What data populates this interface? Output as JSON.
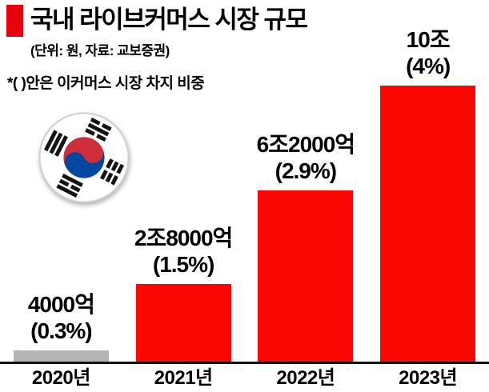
{
  "header": {
    "title": "국내 라이브커머스 시장 규모",
    "subtitle": "(단위: 원, 자료: 교보증권)",
    "note": "*(  )안은 이커머스 시장 차지 비중"
  },
  "chart_data": {
    "type": "bar",
    "title": "국내 라이브커머스 시장 규모",
    "unit_source_note": "(단위: 원, 자료: 교보증권)",
    "footnote": "*(  )안은 이커머스 시장 차지 비중",
    "categories": [
      "2020년",
      "2021년",
      "2022년",
      "2023년"
    ],
    "values_in_trillion_won": [
      0.4,
      2.8,
      6.2,
      10
    ],
    "bar_value_labels": [
      "4000억",
      "2조8000억",
      "6조2000억",
      "10조"
    ],
    "share_of_ecommerce_labels": [
      "(0.3%)",
      "(1.5%)",
      "(2.9%)",
      "(4%)"
    ],
    "bar_colors": [
      "#b5b5b5",
      "#fb0505",
      "#fb0505",
      "#fb0505"
    ],
    "ylim": [
      0,
      10
    ],
    "grid": false,
    "legend": false,
    "xlabel": "",
    "ylabel": ""
  },
  "colors": {
    "accent_red": "#e8000d",
    "bar_red": "#fb0505",
    "bar_gray": "#b5b5b5",
    "axis_line": "#121212",
    "text": "#000000"
  },
  "icons": {
    "flag": "south-korea-flag-icon"
  }
}
